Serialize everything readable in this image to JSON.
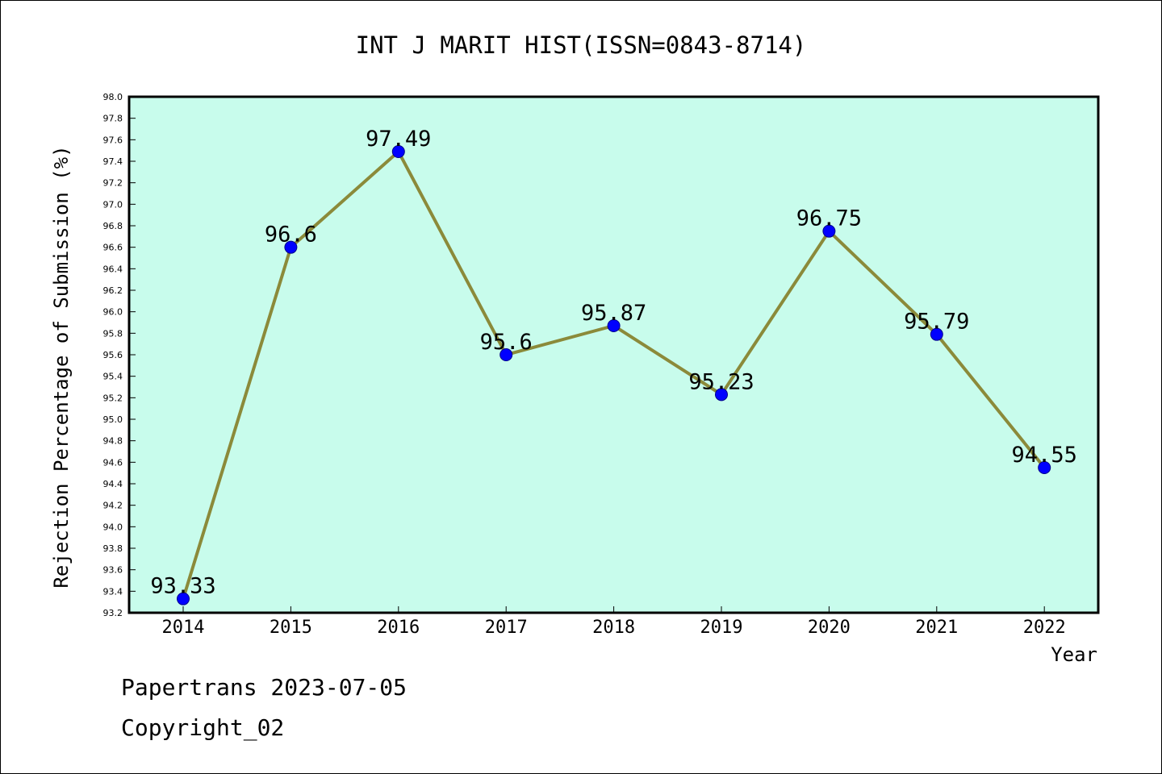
{
  "chart_data": {
    "type": "line",
    "title": "INT J MARIT HIST(ISSN=0843-8714)",
    "xlabel": "Year",
    "ylabel": "Rejection Percentage of Submission (%)",
    "categories": [
      "2014",
      "2015",
      "2016",
      "2017",
      "2018",
      "2019",
      "2020",
      "2021",
      "2022"
    ],
    "values": [
      93.33,
      96.6,
      97.49,
      95.6,
      95.87,
      95.23,
      96.75,
      95.79,
      94.55
    ],
    "point_labels": [
      "93.33",
      "96.6",
      "97.49",
      "95.6",
      "95.87",
      "95.23",
      "96.75",
      "95.79",
      "94.55"
    ],
    "ylim": [
      93.2,
      98.0
    ],
    "ytick_step": 0.2,
    "grid": false,
    "colors": {
      "plot_background": "#c8fcec",
      "line": "#8b8a3a",
      "marker": "#0000ff"
    }
  },
  "footer": {
    "line1": "Papertrans 2023-07-05",
    "line2": "Copyright_02"
  }
}
